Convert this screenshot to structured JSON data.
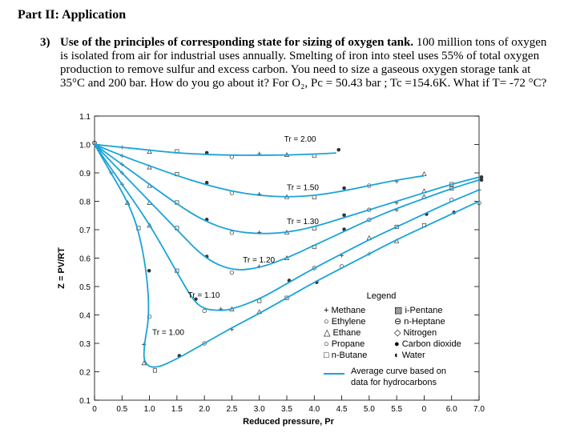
{
  "heading": "Part II: Application",
  "question": {
    "number": "3)",
    "title": "Use of the principles of corresponding state for sizing of oxygen tank.",
    "body": "100 million tons of oxygen is isolated from air for industrial uses annually. Smelting of iron into steel uses 55% of total oxygen production to remove sulfur and excess carbon. You need to size a gaseous oxygen storage tank at 35°C and 200 bar. How do you go about it? For O₂, Pc = 50.43 bar ; Tc =154.6K. What if T= -72 °C?"
  },
  "chart_data": {
    "type": "line",
    "ylabel": "Z = PV/RT",
    "xlabel": "Reduced pressure, Pr",
    "ylim": [
      0.1,
      1.1
    ],
    "xlim": [
      0,
      7.0
    ],
    "y_ticks": [
      "0.1",
      "0.2",
      "0.3",
      "0.4",
      "0.5",
      "0.6",
      "0.7",
      "0.8",
      "0.9",
      "1.0",
      "1.1"
    ],
    "x_ticks": [
      "0",
      "0.5",
      "1.0",
      "1.5",
      "2.0",
      "2.5",
      "3.0",
      "3.5",
      "4.0",
      "4.5",
      "5.0",
      "5.5",
      "0",
      "6.0",
      "7.0"
    ],
    "curve_color": "#1aa3d9",
    "series": [
      {
        "name": "Tr = 2.00",
        "label": "Tr = 2.00",
        "points": [
          [
            0,
            1.0
          ],
          [
            0.5,
            0.99
          ],
          [
            1.0,
            0.98
          ],
          [
            1.5,
            0.97
          ],
          [
            2.0,
            0.965
          ],
          [
            2.5,
            0.962
          ],
          [
            3.0,
            0.962
          ],
          [
            3.5,
            0.963
          ],
          [
            4.0,
            0.966
          ],
          [
            4.4,
            0.97
          ]
        ]
      },
      {
        "name": "Tr = 1.50",
        "label": "Tr = 1.50",
        "points": [
          [
            0,
            1.0
          ],
          [
            0.5,
            0.96
          ],
          [
            1.0,
            0.925
          ],
          [
            1.5,
            0.89
          ],
          [
            2.0,
            0.86
          ],
          [
            2.5,
            0.835
          ],
          [
            3.0,
            0.82
          ],
          [
            3.5,
            0.815
          ],
          [
            4.0,
            0.82
          ],
          [
            4.5,
            0.835
          ],
          [
            5.0,
            0.855
          ],
          [
            5.5,
            0.875
          ],
          [
            6.0,
            0.89
          ]
        ]
      },
      {
        "name": "Tr = 1.30",
        "label": "Tr = 1.30",
        "points": [
          [
            0,
            1.0
          ],
          [
            0.5,
            0.93
          ],
          [
            1.0,
            0.86
          ],
          [
            1.5,
            0.79
          ],
          [
            2.0,
            0.73
          ],
          [
            2.5,
            0.695
          ],
          [
            3.0,
            0.685
          ],
          [
            3.5,
            0.69
          ],
          [
            4.0,
            0.71
          ],
          [
            4.5,
            0.74
          ],
          [
            5.0,
            0.77
          ],
          [
            5.5,
            0.8
          ],
          [
            6.0,
            0.83
          ],
          [
            6.5,
            0.86
          ],
          [
            7.0,
            0.885
          ]
        ]
      },
      {
        "name": "Tr = 1.20",
        "label": "Tr = 1.20",
        "points": [
          [
            0,
            1.0
          ],
          [
            0.5,
            0.9
          ],
          [
            1.0,
            0.8
          ],
          [
            1.5,
            0.7
          ],
          [
            2.0,
            0.6
          ],
          [
            2.5,
            0.555
          ],
          [
            3.0,
            0.565
          ],
          [
            3.5,
            0.6
          ],
          [
            4.0,
            0.645
          ],
          [
            4.5,
            0.69
          ],
          [
            5.0,
            0.735
          ],
          [
            5.5,
            0.775
          ],
          [
            6.0,
            0.81
          ],
          [
            6.5,
            0.845
          ],
          [
            7.0,
            0.875
          ]
        ]
      },
      {
        "name": "Tr = 1.10",
        "label": "Tr = 1.10",
        "points": [
          [
            0,
            1.0
          ],
          [
            0.5,
            0.86
          ],
          [
            1.0,
            0.72
          ],
          [
            1.5,
            0.55
          ],
          [
            1.8,
            0.45
          ],
          [
            2.0,
            0.42
          ],
          [
            2.3,
            0.415
          ],
          [
            2.5,
            0.42
          ],
          [
            3.0,
            0.455
          ],
          [
            3.5,
            0.51
          ],
          [
            4.0,
            0.565
          ],
          [
            4.5,
            0.615
          ],
          [
            5.0,
            0.665
          ],
          [
            5.5,
            0.71
          ],
          [
            6.0,
            0.755
          ],
          [
            6.5,
            0.8
          ],
          [
            7.0,
            0.84
          ]
        ]
      },
      {
        "name": "Tr = 1.00",
        "label": "Tr = 1.00",
        "points": [
          [
            0,
            1.0
          ],
          [
            0.3,
            0.9
          ],
          [
            0.6,
            0.8
          ],
          [
            0.8,
            0.7
          ],
          [
            0.95,
            0.55
          ],
          [
            1.0,
            0.4
          ],
          [
            0.9,
            0.29
          ],
          [
            0.9,
            0.23
          ],
          [
            1.1,
            0.21
          ],
          [
            1.5,
            0.245
          ],
          [
            2.0,
            0.3
          ],
          [
            2.5,
            0.355
          ],
          [
            3.0,
            0.405
          ],
          [
            3.5,
            0.46
          ],
          [
            4.0,
            0.515
          ],
          [
            4.5,
            0.565
          ],
          [
            5.0,
            0.615
          ],
          [
            5.5,
            0.665
          ],
          [
            6.0,
            0.71
          ],
          [
            6.5,
            0.755
          ],
          [
            7.0,
            0.8
          ]
        ]
      }
    ],
    "legend": {
      "title": "Legend",
      "placement": "bottom-right",
      "col1": [
        "+ Methane",
        "○ Ethylene",
        "△ Ethane",
        "○ Propane",
        "□ n-Butane"
      ],
      "col2": [
        "▨ i-Pentane",
        "⊖ n-Heptane",
        "◇ Nitrogen",
        "● Carbon dioxide",
        "◐ Water"
      ],
      "curve_label_1": "Average curve based on",
      "curve_label_2": "data for hydrocarbons"
    }
  }
}
